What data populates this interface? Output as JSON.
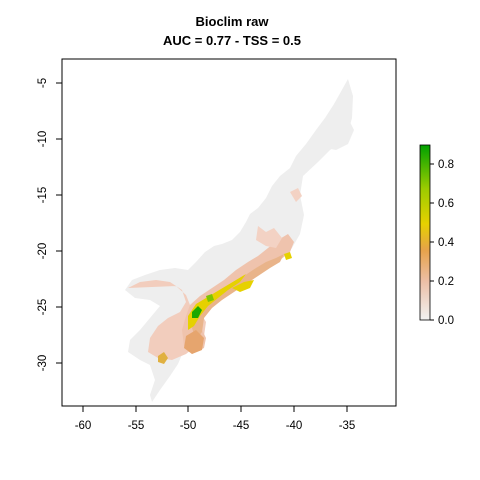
{
  "title": "Bioclim raw",
  "subtitle": "AUC = 0.77 - TSS = 0.5",
  "map": {
    "xlim": [
      -62,
      -30
    ],
    "ylim": [
      -34,
      -3
    ],
    "x_ticks": [
      -60,
      -55,
      -50,
      -45,
      -40,
      -35
    ],
    "y_ticks": [
      -5,
      -10,
      -15,
      -20,
      -25,
      -30
    ],
    "background_color": "#eeeeee",
    "suitability_low_color": "#f2cdbd",
    "suitability_mid_color": "#e9b48a",
    "suitability_high_color": "#e6d100",
    "suitability_peak_color": "#00a000"
  },
  "legend": {
    "ticks": [
      "0.0",
      "0.2",
      "0.4",
      "0.6",
      "0.8"
    ],
    "tick_values": [
      0.0,
      0.2,
      0.4,
      0.6,
      0.8
    ],
    "range": [
      0.0,
      0.9
    ],
    "color_stops": [
      "#f2f2f2",
      "#ecbfa6",
      "#e6a24a",
      "#e6d100",
      "#9ccc00",
      "#00a000"
    ]
  }
}
